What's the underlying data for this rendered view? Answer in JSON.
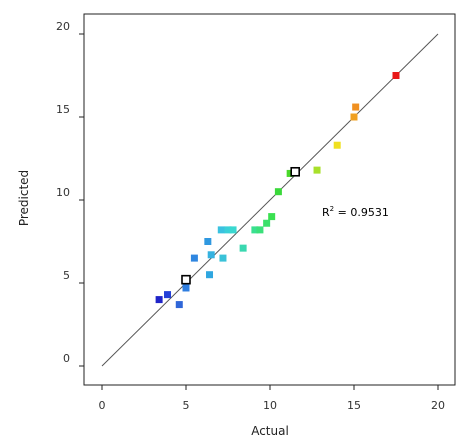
{
  "chart_data": {
    "type": "scatter",
    "title": "",
    "xlabel": "Actual",
    "ylabel": "Predicted",
    "xlim": [
      0,
      20
    ],
    "ylim": [
      0,
      20
    ],
    "x_ticks": [
      "0",
      "5",
      "10",
      "15",
      "20"
    ],
    "y_ticks": [
      "0",
      "5",
      "10",
      "15",
      "20"
    ],
    "grid": false,
    "legend": "none",
    "reference_line": {
      "from": [
        0,
        0
      ],
      "to": [
        20,
        20
      ]
    },
    "annotation": {
      "r2_prefix": "R",
      "r2_superscript": "2",
      "r2_text": " = 0.9531"
    },
    "series": [
      {
        "points": [
          {
            "x": 3.4,
            "y": 4.0,
            "color": "#1f24c8"
          },
          {
            "x": 3.9,
            "y": 4.3,
            "color": "#2340d8"
          },
          {
            "x": 4.6,
            "y": 3.7,
            "color": "#2f66d8"
          },
          {
            "x": 5.0,
            "y": 4.7,
            "color": "#2f7ee0",
            "hollow": false
          },
          {
            "x": 5.0,
            "y": 5.2,
            "color": "#ffffff",
            "hollow": true
          },
          {
            "x": 5.5,
            "y": 6.5,
            "color": "#2f86e0"
          },
          {
            "x": 6.3,
            "y": 7.5,
            "color": "#2f98e0"
          },
          {
            "x": 6.4,
            "y": 5.5,
            "color": "#2fa6e0"
          },
          {
            "x": 6.5,
            "y": 6.7,
            "color": "#35b2e0"
          },
          {
            "x": 7.1,
            "y": 8.2,
            "color": "#3ac2e0"
          },
          {
            "x": 7.2,
            "y": 6.5,
            "color": "#3ac2d8"
          },
          {
            "x": 7.5,
            "y": 8.2,
            "color": "#3ad0d8"
          },
          {
            "x": 7.8,
            "y": 8.2,
            "color": "#3ad8d0"
          },
          {
            "x": 8.4,
            "y": 7.1,
            "color": "#3ad8b0"
          },
          {
            "x": 9.1,
            "y": 8.2,
            "color": "#3ae090"
          },
          {
            "x": 9.4,
            "y": 8.2,
            "color": "#3ae07a"
          },
          {
            "x": 9.8,
            "y": 8.6,
            "color": "#3ae06a"
          },
          {
            "x": 10.1,
            "y": 9.0,
            "color": "#3ae050"
          },
          {
            "x": 10.5,
            "y": 10.5,
            "color": "#3ad83a"
          },
          {
            "x": 11.2,
            "y": 11.6,
            "color": "#4ad82a"
          },
          {
            "x": 11.5,
            "y": 11.7,
            "color": "#ffffff",
            "hollow": true
          },
          {
            "x": 12.8,
            "y": 11.8,
            "color": "#a8e02a"
          },
          {
            "x": 14.0,
            "y": 13.3,
            "color": "#f0e020"
          },
          {
            "x": 15.0,
            "y": 15.0,
            "color": "#f0a020"
          },
          {
            "x": 15.1,
            "y": 15.6,
            "color": "#f09020"
          },
          {
            "x": 17.5,
            "y": 17.5,
            "color": "#e81818"
          }
        ]
      }
    ]
  }
}
